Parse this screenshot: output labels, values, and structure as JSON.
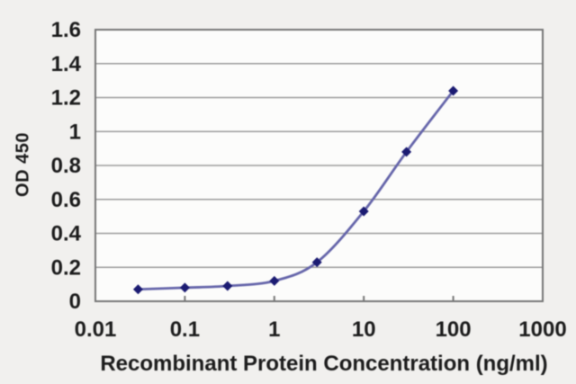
{
  "chart_data": {
    "type": "line",
    "title": "",
    "xlabel": "Recombinant Protein Concentration (ng/ml)",
    "ylabel": "OD 450",
    "x_scale": "log",
    "xlim": [
      0.01,
      1000
    ],
    "ylim": [
      0,
      1.6
    ],
    "x_tick_values": [
      0.01,
      0.1,
      1,
      10,
      100,
      1000
    ],
    "x_tick_labels": [
      "0.01",
      "0.1",
      "1",
      "10",
      "100",
      "1000"
    ],
    "y_tick_values": [
      0,
      0.2,
      0.4,
      0.6,
      0.8,
      1,
      1.2,
      1.4,
      1.6
    ],
    "y_tick_labels": [
      "0",
      "0.2",
      "0.4",
      "0.6",
      "0.8",
      "1",
      "1.2",
      "1.4",
      "1.6"
    ],
    "grid": "horizontal",
    "legend": "none",
    "series": [
      {
        "x": [
          0.03,
          0.1,
          0.3,
          1,
          3,
          10,
          30,
          100
        ],
        "y": [
          0.07,
          0.08,
          0.09,
          0.12,
          0.23,
          0.53,
          0.88,
          1.24
        ],
        "marker": "diamond",
        "smooth": true,
        "line_color": "#6565aa",
        "marker_color": "#1b1b72"
      }
    ],
    "colors": {
      "grid": "#9b9b9b",
      "axis_border": "#757575",
      "text": "#1c1c1c",
      "plot_background": "#fcfcfb",
      "page_background": "#f1f0ee"
    }
  }
}
